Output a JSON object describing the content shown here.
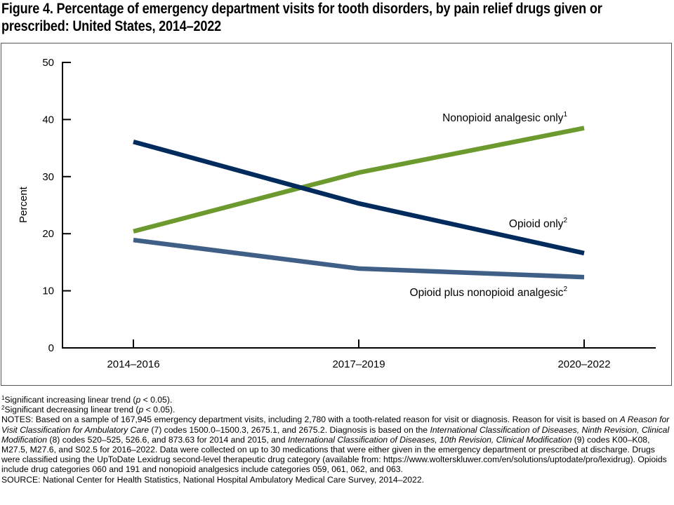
{
  "title": "Figure 4. Percentage of emergency department visits for tooth disorders, by pain relief drugs given or prescribed: United States, 2014–2022",
  "chart_data": {
    "type": "line",
    "title": "Figure 4. Percentage of emergency department visits for tooth disorders, by pain relief drugs given or prescribed: United States, 2014–2022",
    "xlabel": "",
    "ylabel": "Percent",
    "ylim": [
      0,
      50
    ],
    "yticks": [
      "0",
      "10",
      "20",
      "30",
      "40",
      "50"
    ],
    "categories": [
      "2014–2016",
      "2017–2019",
      "2020–2022"
    ],
    "grid": false,
    "legend": "inline labels at right end of lines",
    "series": [
      {
        "name": "Nonopioid analgesic only",
        "sup": "1",
        "color": "#6d9a2e",
        "values": [
          20.4,
          30.7,
          38.5
        ]
      },
      {
        "name": "Opioid only",
        "sup": "2",
        "color": "#002b5c",
        "values": [
          36.1,
          25.3,
          16.6
        ]
      },
      {
        "name": "Opioid plus nonopioid analgesic",
        "sup": "2",
        "color": "#3f5f86",
        "values": [
          18.9,
          13.9,
          12.4
        ]
      }
    ]
  },
  "notes": {
    "footnote1": {
      "sup": "1",
      "text_a": "Significant increasing linear trend (",
      "p": "p",
      "text_b": " < 0.05)."
    },
    "footnote2": {
      "sup": "2",
      "text_a": "Significant decreasing linear trend (",
      "p": "p",
      "text_b": " < 0.05)."
    },
    "notes_parts": [
      {
        "t": "NOTES: Based on a sample of 167,945 emergency department visits, including 2,780 with a tooth-related reason for visit or diagnosis. Reason for visit is based on ",
        "i": false
      },
      {
        "t": "A Reason for Visit Classification for Ambulatory Care",
        "i": true
      },
      {
        "t": " (7) codes 1500.0–1500.3, 2675.1, and 2675.2. Diagnosis is based on the ",
        "i": false
      },
      {
        "t": "International Classification of Diseases, Ninth Revision, Clinical Modification",
        "i": true
      },
      {
        "t": " (8) codes 520–525, 526.6, and 873.63 for 2014 and 2015, and ",
        "i": false
      },
      {
        "t": "International Classification of Diseases, 10th Revision, Clinical Modification",
        "i": true
      },
      {
        "t": " (9) codes K00–K08, M27.5, M27.6, and S02.5 for 2016–2022. Data were collected on up to 30 medications that were either given in the emergency department or prescribed at discharge. Drugs were classified using the UpToDate Lexidrug second-level therapeutic drug category (available from: https://www.wolterskluwer.com/en/solutions/uptodate/pro/lexidrug). Opioids include drug categories 060 and 191 and nonopioid analgesics include categories 059, 061, 062, and 063.",
        "i": false
      }
    ],
    "source": "SOURCE: National Center for Health Statistics, National Hospital Ambulatory Medical Care Survey, 2014–2022."
  }
}
